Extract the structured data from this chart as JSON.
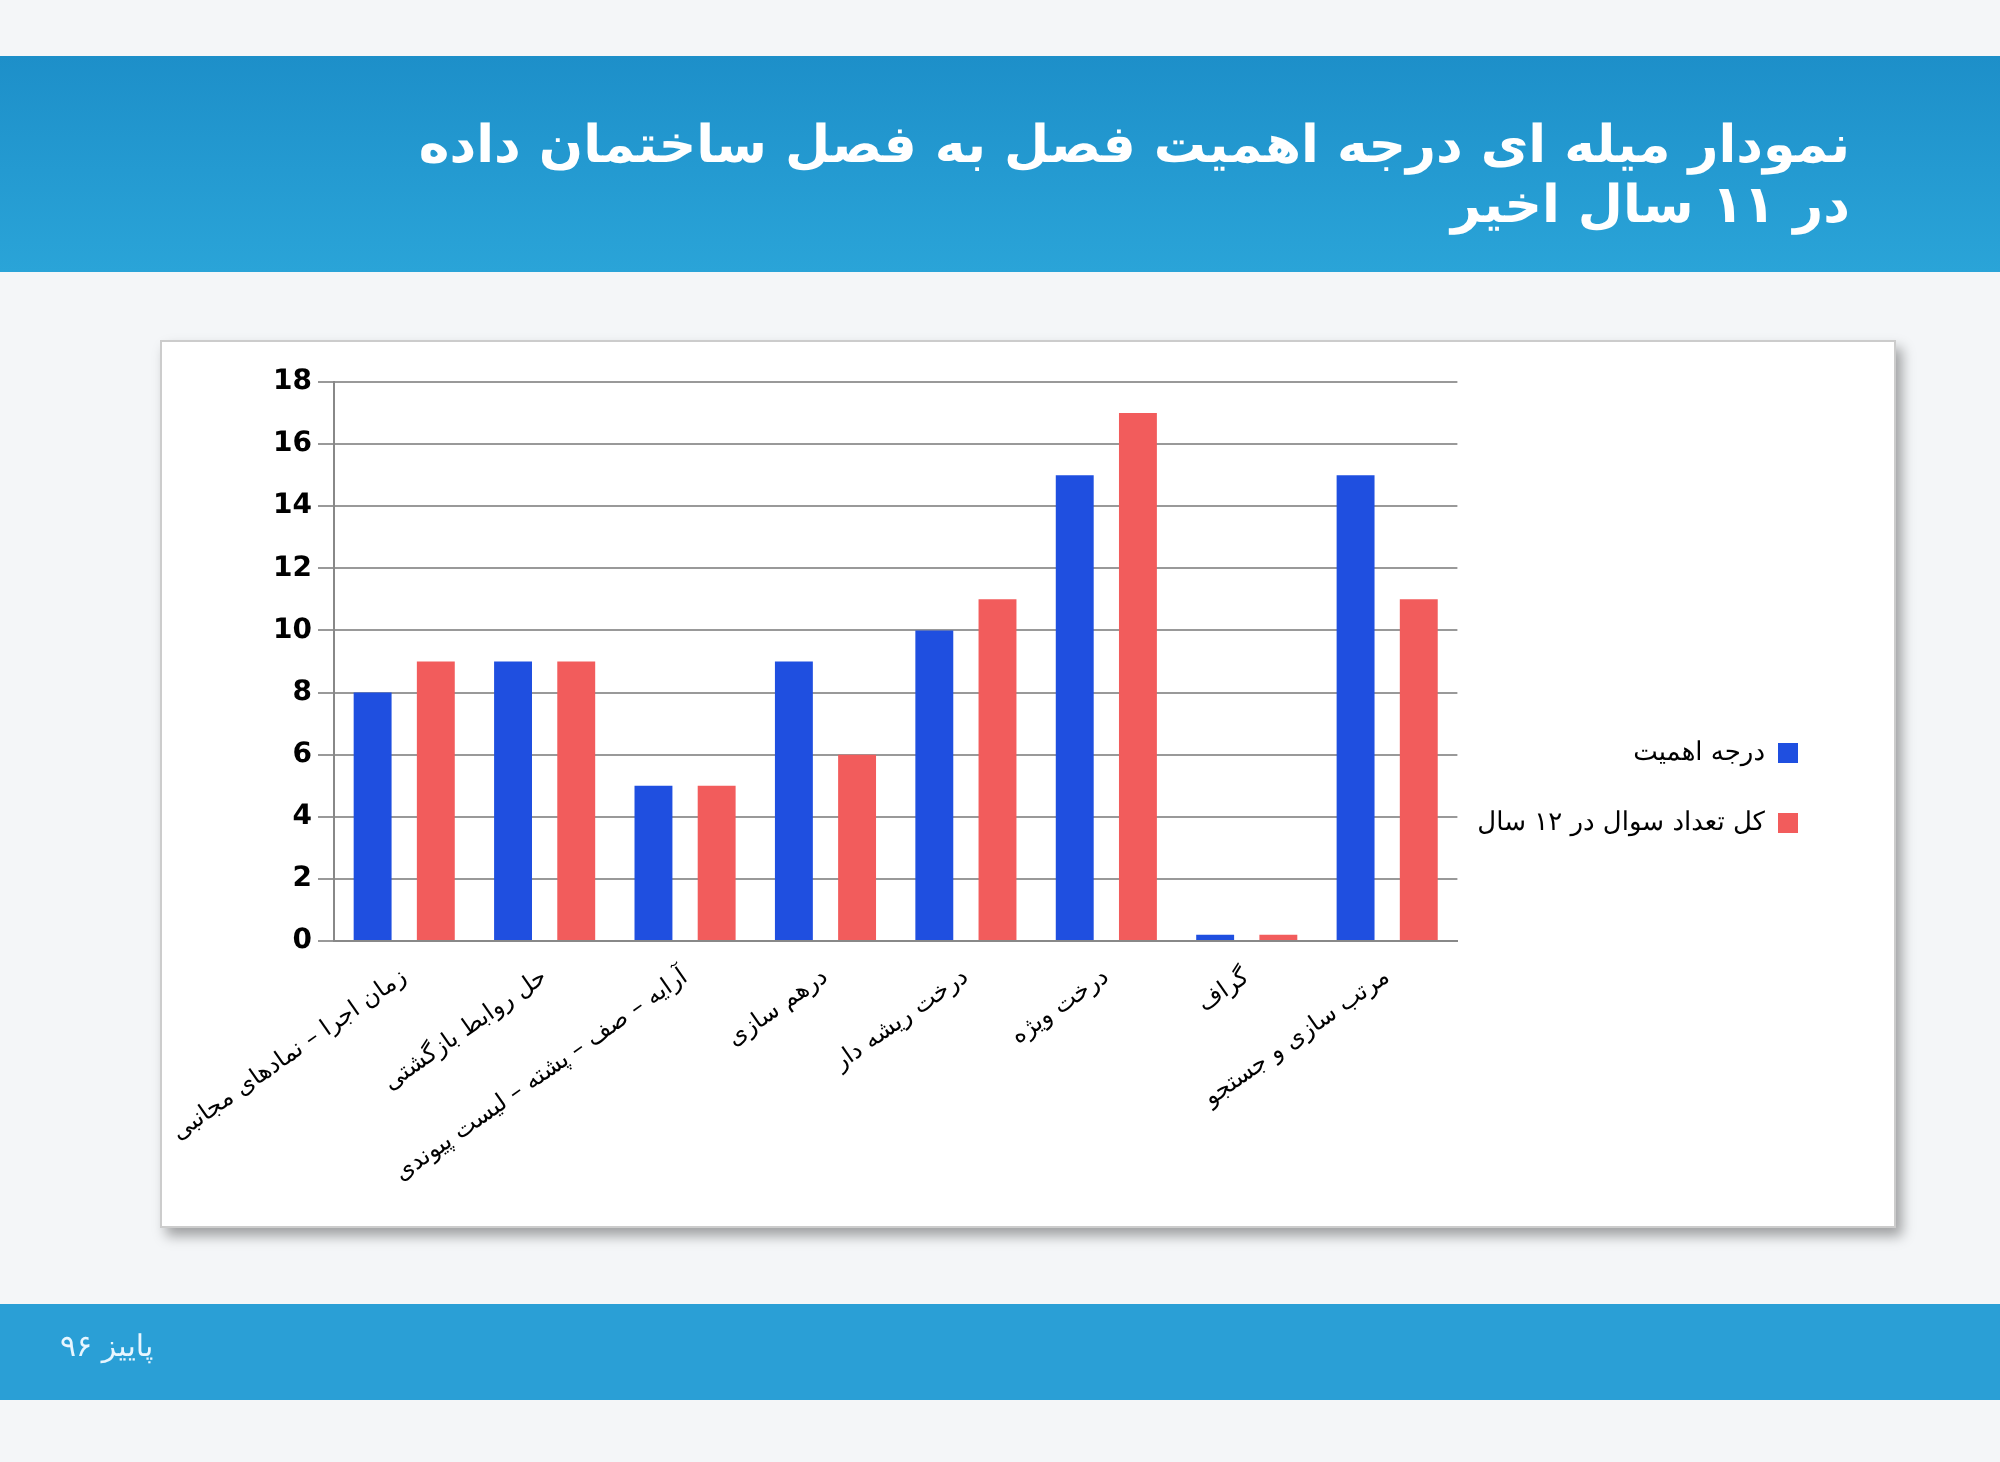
{
  "chart_data": {
    "type": "bar",
    "title": "نمودار میله ای درجه اهمیت فصل به فصل ساختمان داده در ۱۱ سال اخیر",
    "categories": [
      "زمان اجرا – نمادهای مجانبی",
      "حل روابط بازگشتی",
      "آرایه – صف – پشته – لیست پیوندی",
      "درهم سازی",
      "درخت ریشه دار",
      "درخت ویژه",
      "گراف",
      "مرتب سازی و جستجو"
    ],
    "series": [
      {
        "name": "درجه اهمیت",
        "color": "#1f4fe0",
        "values": [
          8,
          9,
          5,
          9,
          10,
          15,
          0.2,
          15
        ]
      },
      {
        "name": "کل تعداد سوال در ۱۲ سال",
        "color": "#f25c5c",
        "values": [
          9,
          9,
          5,
          6,
          11,
          17,
          0.2,
          11
        ]
      }
    ],
    "ylim": [
      0,
      18
    ],
    "yticks": [
      0,
      2,
      4,
      6,
      8,
      10,
      12,
      14,
      16,
      18
    ],
    "grid": "y",
    "legend": "right",
    "annotations": [
      "پاییز ۹۶"
    ]
  }
}
